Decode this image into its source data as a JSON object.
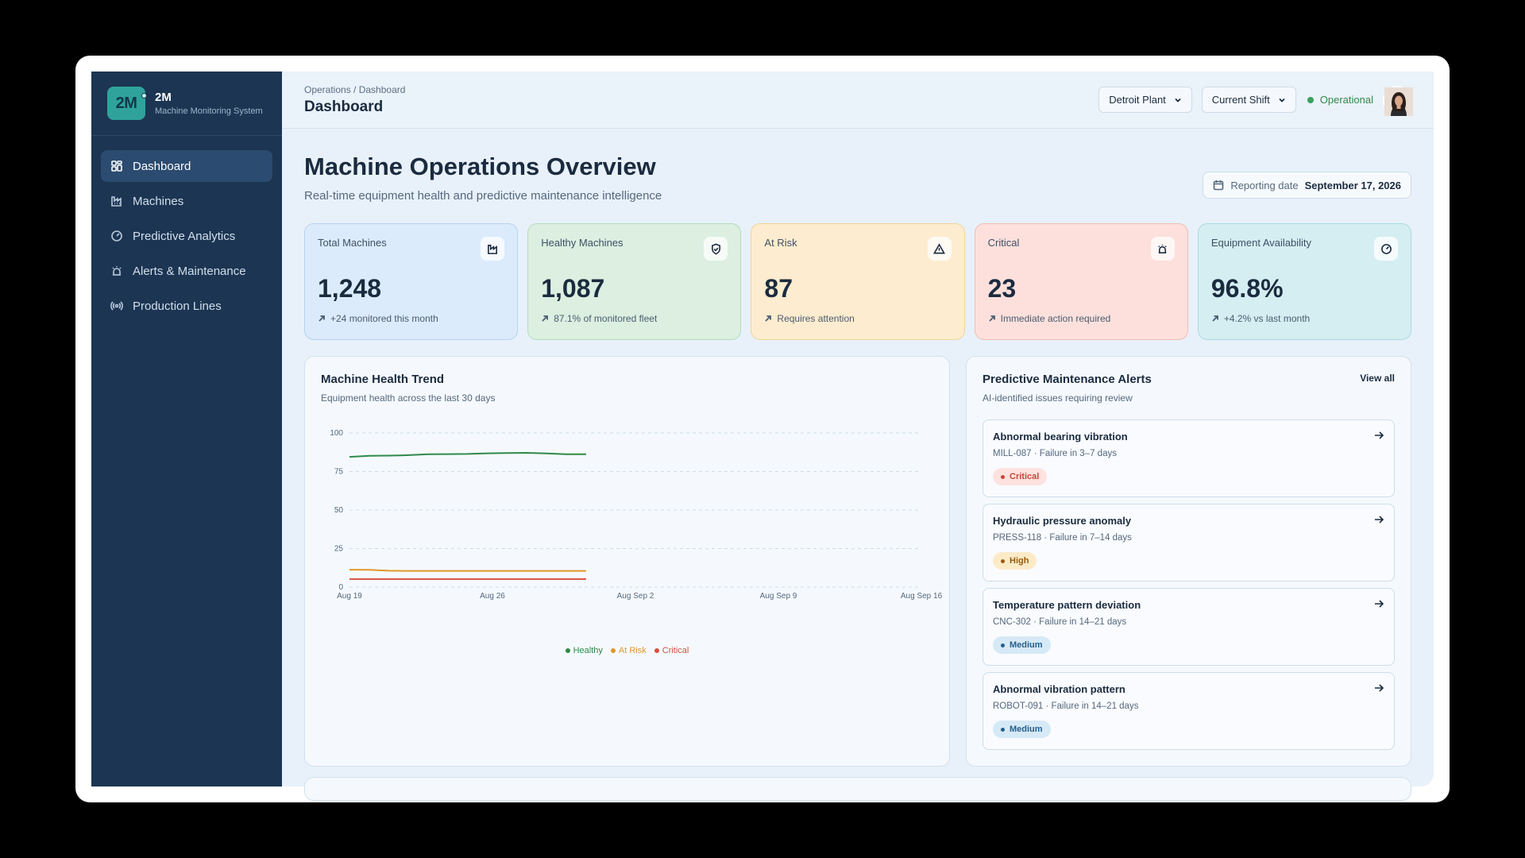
{
  "brand": {
    "logo": "2M",
    "name": "2M",
    "subtitle": "Machine Monitoring System"
  },
  "sidebar": {
    "items": [
      {
        "label": "Dashboard",
        "icon": "dashboard-icon",
        "active": true
      },
      {
        "label": "Machines",
        "icon": "factory-icon"
      },
      {
        "label": "Predictive Analytics",
        "icon": "gauge-icon"
      },
      {
        "label": "Alerts & Maintenance",
        "icon": "siren-icon"
      },
      {
        "label": "Production Lines",
        "icon": "radio-icon"
      }
    ]
  },
  "header": {
    "breadcrumb": "Operations / Dashboard",
    "title": "Dashboard",
    "plant_select": "Detroit Plant",
    "shift_select": "Current Shift",
    "status": "Operational",
    "status_color": "#3aa15c"
  },
  "overview": {
    "title": "Machine Operations Overview",
    "subtitle": "Real-time equipment health and predictive maintenance intelligence",
    "reporting_label": "Reporting date",
    "reporting_date": "September 17, 2026"
  },
  "kpis": [
    {
      "label": "Total Machines",
      "value": "1,248",
      "note": "+24 monitored this month",
      "icon": "factory-icon",
      "bg": "#dcebfc",
      "border": "#b7d2f0"
    },
    {
      "label": "Healthy Machines",
      "value": "1,087",
      "note": "87.1% of monitored fleet",
      "icon": "shield-check-icon",
      "bg": "#dcefe0",
      "border": "#b5dcbf"
    },
    {
      "label": "At Risk",
      "value": "87",
      "note": "Requires attention",
      "icon": "warning-icon",
      "bg": "#fdeccf",
      "border": "#f3d39c"
    },
    {
      "label": "Critical",
      "value": "23",
      "note": "Immediate action required",
      "icon": "siren-icon",
      "bg": "#fde0dc",
      "border": "#f2bdb6"
    },
    {
      "label": "Equipment Availability",
      "value": "96.8%",
      "note": "+4.2% vs last month",
      "icon": "gauge-icon",
      "bg": "#d5eef2",
      "border": "#abdbe3"
    }
  ],
  "trend": {
    "title": "Machine Health Trend",
    "subtitle": "Equipment health across the last 30 days"
  },
  "chart_data": {
    "type": "line",
    "title": "Machine Health Trend",
    "x_ticks": [
      "Aug 19",
      "Aug 26",
      "Aug Sep 2",
      "Aug Sep 9",
      "Aug Sep 16"
    ],
    "y_ticks": [
      0,
      25,
      50,
      75,
      100
    ],
    "ylim": [
      0,
      100
    ],
    "x_days": 29,
    "grid": true,
    "legend_position": "bottom-center",
    "series": [
      {
        "name": "Healthy",
        "color": "#2e8a4a",
        "x": [
          0,
          1,
          2,
          3,
          4,
          5,
          6,
          7,
          8,
          9,
          10,
          11,
          12
        ],
        "values": [
          84.5,
          85.2,
          85.3,
          85.6,
          86.2,
          86.3,
          86.4,
          86.8,
          87.0,
          87.1,
          86.7,
          86.2,
          86.2
        ]
      },
      {
        "name": "At Risk",
        "color": "#e1972a",
        "x": [
          0,
          1,
          2,
          3,
          4,
          5,
          6,
          7,
          8,
          9,
          10,
          11,
          12
        ],
        "values": [
          11.3,
          11.2,
          10.6,
          10.5,
          10.5,
          10.5,
          10.5,
          10.5,
          10.5,
          10.5,
          10.5,
          10.5,
          10.5
        ]
      },
      {
        "name": "Critical",
        "color": "#d9503f",
        "x": [
          0,
          1,
          2,
          3,
          4,
          5,
          6,
          7,
          8,
          9,
          10,
          11,
          12
        ],
        "values": [
          5.2,
          5.2,
          5.2,
          5.2,
          5.2,
          5.2,
          5.2,
          5.2,
          5.2,
          5.2,
          5.2,
          5.2,
          5.2
        ]
      }
    ]
  },
  "alerts": {
    "title": "Predictive Maintenance Alerts",
    "subtitle": "AI-identified issues requiring review",
    "view_all": "View all",
    "items": [
      {
        "title": "Abnormal bearing vibration",
        "meta": "MILL-087 · Failure in 3–7 days",
        "severity": "Critical",
        "pill_bg": "#fde2df",
        "pill_fg": "#c8473a"
      },
      {
        "title": "Hydraulic pressure anomaly",
        "meta": "PRESS-118 · Failure in 7–14 days",
        "severity": "High",
        "pill_bg": "#fdebc8",
        "pill_fg": "#9a5a0c"
      },
      {
        "title": "Temperature pattern deviation",
        "meta": "CNC-302 · Failure in 14–21 days",
        "severity": "Medium",
        "pill_bg": "#d6e9f6",
        "pill_fg": "#245f8c"
      },
      {
        "title": "Abnormal vibration pattern",
        "meta": "ROBOT-091 · Failure in 14–21 days",
        "severity": "Medium",
        "pill_bg": "#d6e9f6",
        "pill_fg": "#245f8c"
      }
    ]
  }
}
